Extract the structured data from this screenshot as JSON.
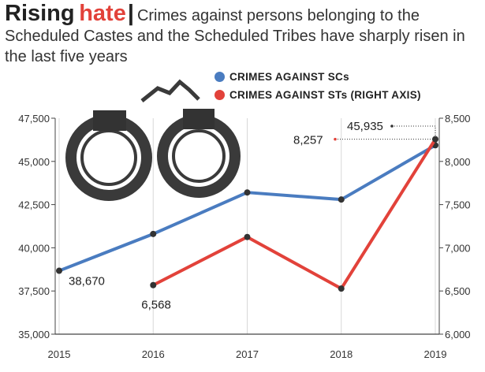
{
  "header": {
    "title_part1": "Rising",
    "title_part2": "hate",
    "separator": "|",
    "subtitle": "Crimes against persons belonging to the Scheduled Castes and the Scheduled Tribes have sharply risen in the last five years"
  },
  "chart_data": {
    "type": "line",
    "x": [
      2015,
      2016,
      2017,
      2018,
      2019
    ],
    "x_tick_labels": [
      "2015",
      "2016",
      "2017",
      "2018",
      "2019"
    ],
    "series": [
      {
        "name": "CRIMES AGAINST SCs",
        "axis": "left",
        "color": "#4a7cc0",
        "values": [
          38670,
          40801,
          43203,
          42793,
          45935
        ]
      },
      {
        "name": "CRIMES AGAINST STs (RIGHT AXIS)",
        "axis": "right",
        "color": "#e2423a",
        "values": [
          null,
          6568,
          7125,
          6528,
          8257
        ]
      }
    ],
    "left_axis": {
      "range": [
        35000,
        47500
      ],
      "tick_labels": [
        "35,000",
        "37,500",
        "40,000",
        "42,500",
        "45,000",
        "47,500"
      ],
      "ticks": [
        35000,
        37500,
        40000,
        42500,
        45000,
        47500
      ]
    },
    "right_axis": {
      "range": [
        6000,
        8500
      ],
      "tick_labels": [
        "6,000",
        "6,500",
        "7,000",
        "7,500",
        "8,000",
        "8,500"
      ],
      "ticks": [
        6000,
        6500,
        7000,
        7500,
        8000,
        8500
      ]
    },
    "annotations": [
      "38,670",
      "6,568",
      "8,257",
      "45,935"
    ],
    "legend_position": "top-right",
    "grid": "vertical"
  }
}
